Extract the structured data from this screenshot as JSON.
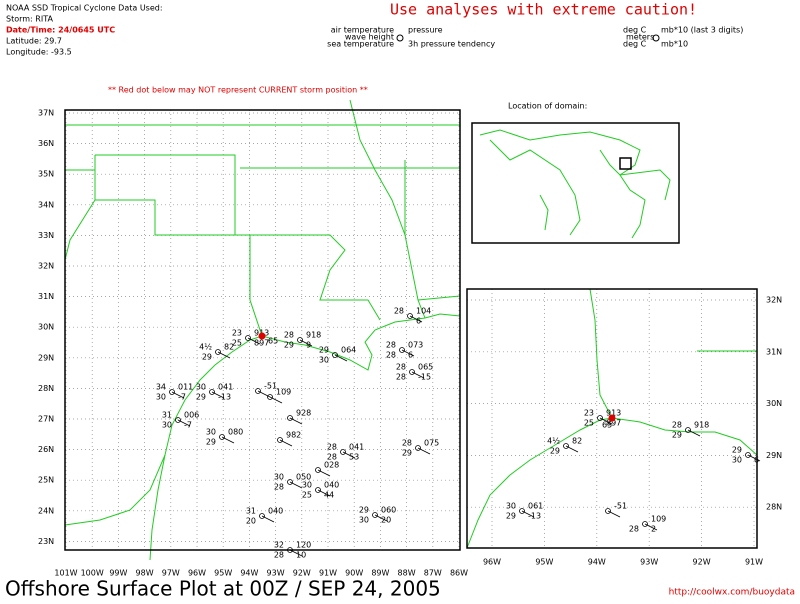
{
  "header": {
    "source": "NOAA SSD Tropical Cyclone Data Used:",
    "storm": "Storm: RITA",
    "datetime": "Date/Time: 24/0645 UTC",
    "latitude": "Latitude: 29.7",
    "longitude": "Longitude: -93.5"
  },
  "caution": "Use analyses with extreme caution!",
  "legend": {
    "air_temperature": "air temperature",
    "pressure": "pressure",
    "wave_height": "wave height",
    "sea_temperature": "sea temperature",
    "tendency": "3h pressure tendency",
    "unit_temp": "deg C",
    "unit_pressure": "mb*10 (last 3 digits)",
    "unit_wave": "meters",
    "unit_sea": "deg C",
    "unit_tendency": "mb*10"
  },
  "notice": "** Red dot below may NOT represent CURRENT storm position **",
  "inset_title": "Location of domain:",
  "main_map": {
    "lat_labels": [
      "37N",
      "36N",
      "35N",
      "34N",
      "33N",
      "32N",
      "31N",
      "30N",
      "29N",
      "28N",
      "27N",
      "26N",
      "25N",
      "24N",
      "23N"
    ],
    "lon_labels": [
      "101W",
      "100W",
      "99W",
      "98W",
      "97W",
      "96W",
      "95W",
      "94W",
      "93W",
      "92W",
      "91W",
      "90W",
      "89W",
      "88W",
      "87W",
      "86W"
    ],
    "stations": [
      [
        "23",
        "913",
        "25",
        "897"
      ],
      [
        "4½",
        "82",
        "29",
        ""
      ],
      [
        "34",
        "011",
        "30",
        "-7"
      ],
      [
        "30",
        "041",
        "29",
        "-13"
      ],
      [
        "",
        "-51",
        "",
        ""
      ],
      [
        "",
        "109",
        "",
        ""
      ],
      [
        "31",
        "006",
        "30",
        "-7"
      ],
      [
        "30",
        "080",
        "29",
        ""
      ],
      [
        "28",
        "918",
        "29",
        "9"
      ],
      [
        "29",
        "064",
        "30",
        ""
      ],
      [
        "28",
        "073",
        "28",
        "6"
      ],
      [
        "28",
        "104",
        "",
        "6"
      ],
      [
        "28",
        "065",
        "28",
        "-15"
      ],
      [
        "28",
        "075",
        "29",
        ""
      ],
      [
        "28",
        "041",
        "28",
        "53"
      ],
      [
        "",
        "928",
        "",
        ""
      ],
      [
        "",
        "982",
        "",
        ""
      ],
      [
        "",
        "028",
        "",
        ""
      ],
      [
        "30",
        "050",
        "28",
        ""
      ],
      [
        "30",
        "040",
        "25",
        "44"
      ],
      [
        "31",
        "040",
        "20",
        ""
      ],
      [
        "29",
        "060",
        "30",
        "20"
      ],
      [
        "32",
        "120",
        "28",
        "10"
      ]
    ],
    "storm_label": "65"
  },
  "zoom_map": {
    "lat_labels": [
      "32N",
      "31N",
      "30N",
      "29N",
      "28N"
    ],
    "lon_labels": [
      "96W",
      "95W",
      "94W",
      "93W",
      "92W",
      "91W"
    ],
    "stations": [
      [
        "23",
        "913",
        "25",
        "897"
      ],
      [
        "4½",
        "82",
        "29",
        ""
      ],
      [
        "30",
        "061",
        "29",
        "-13"
      ],
      [
        "",
        "-51",
        "",
        ""
      ],
      [
        "",
        "109",
        "28",
        "2"
      ],
      [
        "28",
        "918",
        "29",
        ""
      ],
      [
        "29",
        "",
        "30",
        "6"
      ]
    ],
    "storm_label": "65"
  },
  "footer": {
    "title": "Offshore Surface Plot at 00Z / SEP 24, 2005",
    "url": "http://coolwx.com/buoydata"
  }
}
